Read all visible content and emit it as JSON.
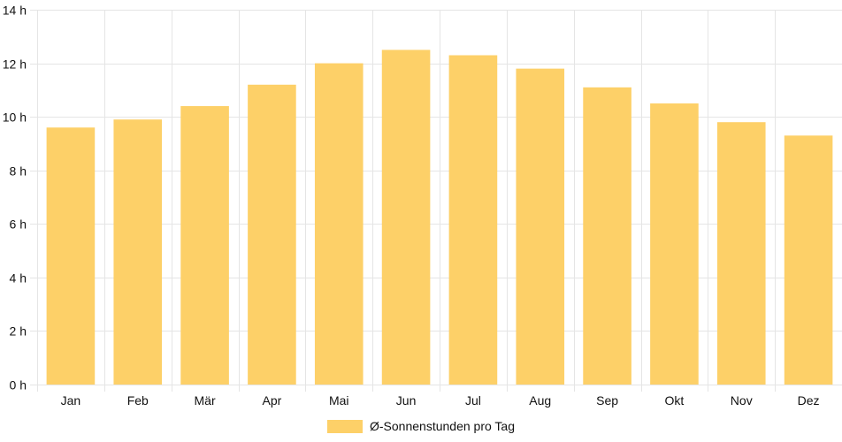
{
  "chart_data": {
    "type": "bar",
    "categories": [
      "Jan",
      "Feb",
      "Mär",
      "Apr",
      "Mai",
      "Jun",
      "Jul",
      "Aug",
      "Sep",
      "Okt",
      "Nov",
      "Dez"
    ],
    "series": [
      {
        "name": "Ø-Sonnenstunden pro Tag",
        "values": [
          9.6,
          9.9,
          10.4,
          11.2,
          12.0,
          12.5,
          12.3,
          11.8,
          11.1,
          10.5,
          9.8,
          9.3
        ],
        "color": "#fdd068"
      }
    ],
    "y_ticks": [
      0,
      2,
      4,
      6,
      8,
      10,
      12,
      14
    ],
    "y_tick_suffix": " h",
    "ylim": [
      0,
      14
    ],
    "grid": true,
    "legend_position": "bottom"
  }
}
